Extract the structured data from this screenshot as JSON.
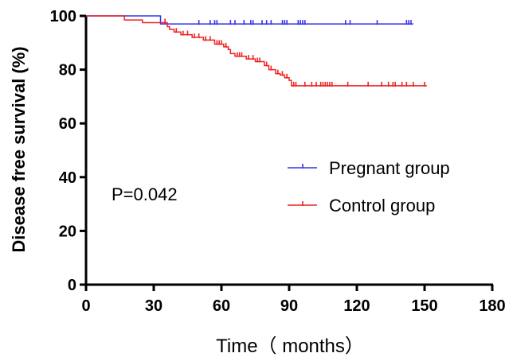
{
  "chart_data": {
    "type": "line",
    "title": "",
    "xlabel": "Time（ months）",
    "ylabel": "Disease free survival (%)",
    "xlim": [
      0,
      180
    ],
    "ylim": [
      0,
      100
    ],
    "xticks": [
      "0",
      "30",
      "60",
      "90",
      "120",
      "150",
      "180"
    ],
    "yticks": [
      "0",
      "20",
      "40",
      "60",
      "80",
      "100"
    ],
    "grid": false,
    "legend_position": "right",
    "annotation": "P=0.042",
    "series": [
      {
        "name": "Pregnant group",
        "color": "#3333ee",
        "steps": [
          [
            0,
            100
          ],
          [
            33,
            97
          ],
          [
            145,
            97
          ]
        ],
        "censored": [
          50,
          55,
          57,
          58,
          64,
          66,
          70,
          73,
          74,
          78,
          80,
          82,
          87,
          88,
          89,
          94,
          95,
          96,
          97,
          115,
          117,
          129,
          142,
          143,
          144
        ]
      },
      {
        "name": "Control group",
        "color": "#ee2222",
        "steps": [
          [
            0,
            100
          ],
          [
            17,
            98.5
          ],
          [
            25,
            97.5
          ],
          [
            36,
            96
          ],
          [
            37,
            95
          ],
          [
            39,
            94
          ],
          [
            42,
            93
          ],
          [
            47,
            92
          ],
          [
            52,
            91
          ],
          [
            57,
            89.5
          ],
          [
            61,
            88.5
          ],
          [
            63,
            87.5
          ],
          [
            64,
            86
          ],
          [
            66,
            85
          ],
          [
            71,
            84
          ],
          [
            75,
            83
          ],
          [
            79,
            81.5
          ],
          [
            81,
            80
          ],
          [
            84,
            78.5
          ],
          [
            86,
            78
          ],
          [
            88,
            77
          ],
          [
            90,
            76
          ],
          [
            91,
            74
          ],
          [
            151,
            74
          ]
        ],
        "censored": [
          35,
          40,
          43,
          45,
          48,
          50,
          53,
          55,
          58,
          59,
          60,
          62,
          67,
          68,
          69,
          72,
          74,
          76,
          77,
          80,
          82,
          85,
          87,
          89,
          92,
          93,
          97,
          100,
          102,
          104,
          105,
          106,
          107,
          108,
          109,
          116,
          125,
          131,
          134,
          136,
          137,
          140,
          142,
          145,
          150
        ]
      }
    ]
  }
}
